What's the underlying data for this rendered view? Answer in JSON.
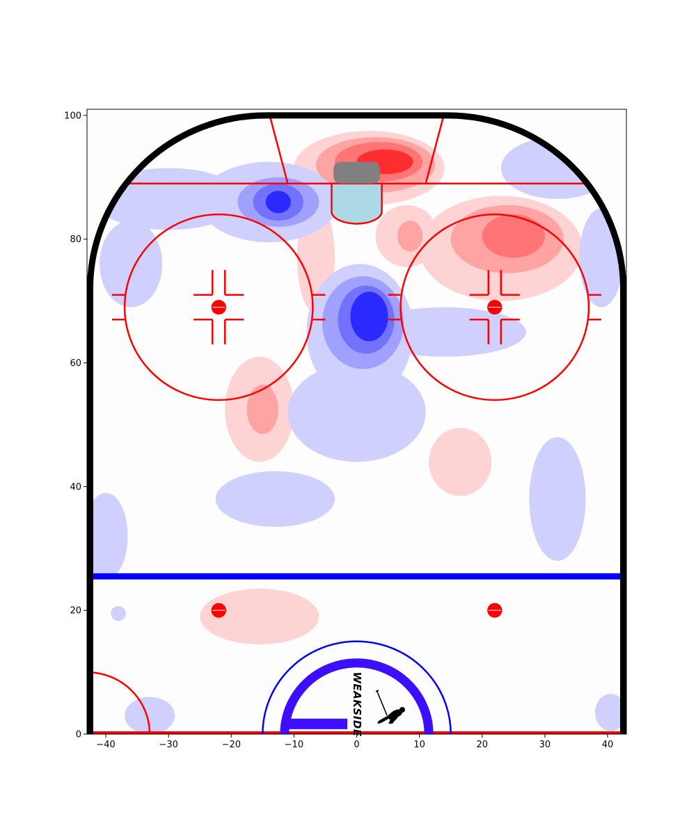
{
  "chart_data": {
    "type": "heatmap",
    "title": "",
    "xlabel": "",
    "ylabel": "",
    "xlim": [
      -43,
      43
    ],
    "ylim": [
      0,
      101
    ],
    "x_ticks": [
      -40,
      -30,
      -20,
      -10,
      0,
      10,
      20,
      30,
      40
    ],
    "x_tick_labels": [
      "−40",
      "−30",
      "−20",
      "−10",
      "0",
      "10",
      "20",
      "30",
      "40"
    ],
    "y_ticks": [
      0,
      20,
      40,
      60,
      80,
      100
    ],
    "y_tick_labels": [
      "0",
      "20",
      "40",
      "60",
      "80",
      "100"
    ],
    "grid": false,
    "colormap": "bwr",
    "regions": [
      {
        "sign": "positive",
        "level": 4,
        "x": 4.5,
        "y": 92.5,
        "rx": 4.5,
        "ry": 2.0
      },
      {
        "sign": "positive",
        "level": 3,
        "x": 3.5,
        "y": 92.5,
        "rx": 7.0,
        "ry": 3.2
      },
      {
        "sign": "positive",
        "level": 2,
        "x": 3.0,
        "y": 92.0,
        "rx": 9.5,
        "ry": 4.5
      },
      {
        "sign": "positive",
        "level": 1,
        "x": 2.0,
        "y": 91.5,
        "rx": 12.0,
        "ry": 6.0
      },
      {
        "sign": "positive",
        "level": 3,
        "x": 25.0,
        "y": 80.5,
        "rx": 5.0,
        "ry": 3.5
      },
      {
        "sign": "positive",
        "level": 2,
        "x": 24.0,
        "y": 80.0,
        "rx": 9.0,
        "ry": 5.5
      },
      {
        "sign": "positive",
        "level": 1,
        "x": 23.0,
        "y": 78.5,
        "rx": 13.0,
        "ry": 8.5
      },
      {
        "sign": "positive",
        "level": 2,
        "x": 8.5,
        "y": 80.5,
        "rx": 2.0,
        "ry": 2.5
      },
      {
        "sign": "positive",
        "level": 1,
        "x": 8.0,
        "y": 80.5,
        "rx": 5.0,
        "ry": 5.0
      },
      {
        "sign": "positive",
        "level": 1,
        "x": -6.5,
        "y": 77.0,
        "rx": 3.0,
        "ry": 9.0
      },
      {
        "sign": "positive",
        "level": 2,
        "x": -15.0,
        "y": 52.5,
        "rx": 2.5,
        "ry": 4.0
      },
      {
        "sign": "positive",
        "level": 1,
        "x": -15.5,
        "y": 52.5,
        "rx": 5.5,
        "ry": 8.5
      },
      {
        "sign": "positive",
        "level": 1,
        "x": 16.5,
        "y": 44.0,
        "rx": 5.0,
        "ry": 5.5
      },
      {
        "sign": "positive",
        "level": 1,
        "x": -15.5,
        "y": 19.0,
        "rx": 9.5,
        "ry": 4.5
      },
      {
        "sign": "negative",
        "level": 4,
        "x": 2.0,
        "y": 67.5,
        "rx": 3.0,
        "ry": 4.0
      },
      {
        "sign": "negative",
        "level": 3,
        "x": 1.5,
        "y": 67.0,
        "rx": 4.5,
        "ry": 5.5
      },
      {
        "sign": "negative",
        "level": 2,
        "x": 1.0,
        "y": 66.5,
        "rx": 6.5,
        "ry": 7.5
      },
      {
        "sign": "negative",
        "level": 1,
        "x": 0.5,
        "y": 65.0,
        "rx": 8.5,
        "ry": 11.0
      },
      {
        "sign": "negative",
        "level": 1,
        "x": 0.0,
        "y": 52.0,
        "rx": 11.0,
        "ry": 8.0
      },
      {
        "sign": "negative",
        "level": 1,
        "x": 14.0,
        "y": 65.0,
        "rx": 13.0,
        "ry": 4.0
      },
      {
        "sign": "negative",
        "level": 4,
        "x": -12.5,
        "y": 86.0,
        "rx": 2.0,
        "ry": 1.8
      },
      {
        "sign": "negative",
        "level": 3,
        "x": -12.5,
        "y": 86.0,
        "rx": 4.0,
        "ry": 3.0
      },
      {
        "sign": "negative",
        "level": 2,
        "x": -12.5,
        "y": 86.0,
        "rx": 6.5,
        "ry": 4.0
      },
      {
        "sign": "negative",
        "level": 1,
        "x": -14.0,
        "y": 86.0,
        "rx": 11.0,
        "ry": 6.5
      },
      {
        "sign": "negative",
        "level": 1,
        "x": -30.0,
        "y": 86.5,
        "rx": 12.0,
        "ry": 5.0
      },
      {
        "sign": "negative",
        "level": 1,
        "x": -36.0,
        "y": 76.0,
        "rx": 5.0,
        "ry": 7.0
      },
      {
        "sign": "negative",
        "level": 1,
        "x": 32.0,
        "y": 91.5,
        "rx": 9.0,
        "ry": 5.0
      },
      {
        "sign": "negative",
        "level": 1,
        "x": 39.0,
        "y": 77.0,
        "rx": 3.5,
        "ry": 8.0
      },
      {
        "sign": "negative",
        "level": 1,
        "x": -13.0,
        "y": 38.0,
        "rx": 9.5,
        "ry": 4.5
      },
      {
        "sign": "negative",
        "level": 1,
        "x": 32.0,
        "y": 38.0,
        "rx": 4.5,
        "ry": 10.0
      },
      {
        "sign": "negative",
        "level": 1,
        "x": -40.0,
        "y": 32.0,
        "rx": 3.5,
        "ry": 7.0
      },
      {
        "sign": "negative",
        "level": 1,
        "x": -38.0,
        "y": 19.5,
        "rx": 1.2,
        "ry": 1.2
      },
      {
        "sign": "negative",
        "level": 1,
        "x": -33.0,
        "y": 3.0,
        "rx": 4.0,
        "ry": 3.0
      },
      {
        "sign": "negative",
        "level": 1,
        "x": 40.5,
        "y": 3.5,
        "rx": 2.5,
        "ry": 3.0
      }
    ],
    "colors": {
      "pos": [
        "#fed3d3",
        "#ffa3a3",
        "#ff7575",
        "#ff2e2e"
      ],
      "neg": [
        "#d0d0ff",
        "#a0a0ff",
        "#7272ff",
        "#2a2aff"
      ]
    }
  },
  "rink": {
    "board_color": "#000000",
    "line_color": "#ff0000",
    "blue_line_color": "#0000ff",
    "crease_color": "#add8e6",
    "net_color": "#808080",
    "logo_ring_color": "#3d0eff",
    "goal_line_y": 89,
    "blue_line_y": 25.5,
    "faceoff_circles": [
      {
        "x": -22,
        "y": 69
      },
      {
        "x": 22,
        "y": 69
      }
    ],
    "faceoff_dots": [
      {
        "x": -22,
        "y": 69
      },
      {
        "x": 22,
        "y": 69
      },
      {
        "x": -22,
        "y": 20
      },
      {
        "x": 22,
        "y": 20
      }
    ]
  },
  "logo": {
    "brand_text": "WEAKSIDE",
    "icon": "hockey-player-icon"
  }
}
